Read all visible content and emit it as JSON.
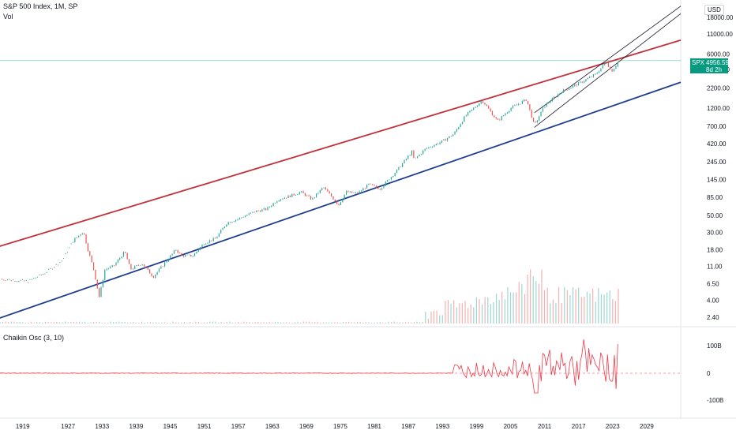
{
  "header": {
    "title": "S&P 500 Index, 1M, SP",
    "volume_label": "Vol",
    "currency": "USD"
  },
  "oscillator": {
    "title": "Chaikin Osc (3, 10)",
    "ticks": [
      "100B",
      "0",
      "-100B"
    ]
  },
  "price_badge": {
    "symbol": "SPX",
    "value": "4956.59",
    "countdown": "8d 2h",
    "color": "#089981"
  },
  "chart_data": {
    "type": "candlestick",
    "y_scale": "log",
    "ylim": [
      2.0,
      30000
    ],
    "xlim": [
      1915,
      2035
    ],
    "y_ticks": [
      "18000.00",
      "11000.00",
      "6000.00",
      "3800.00",
      "2200.00",
      "1200.00",
      "700.00",
      "420.00",
      "245.00",
      "145.00",
      "85.00",
      "50.00",
      "30.00",
      "18.00",
      "11.00",
      "6.50",
      "4.00",
      "2.40"
    ],
    "x_ticks": [
      "1919",
      "1927",
      "1933",
      "1939",
      "1945",
      "1951",
      "1957",
      "1963",
      "1969",
      "1975",
      "1981",
      "1987",
      "1993",
      "1999",
      "2005",
      "2011",
      "2017",
      "2023",
      "2029"
    ],
    "colors": {
      "up": "#26a69a",
      "down": "#ef5350",
      "upper_channel": "#c2303a",
      "lower_channel": "#1d3d8f",
      "osc": "#f23645"
    },
    "price_path": [
      [
        1915,
        7.5
      ],
      [
        1920,
        7.0
      ],
      [
        1923,
        9
      ],
      [
        1926,
        13
      ],
      [
        1928,
        24
      ],
      [
        1929.7,
        31
      ],
      [
        1930.5,
        18
      ],
      [
        1931.5,
        10
      ],
      [
        1932.5,
        4.4
      ],
      [
        1933.5,
        10
      ],
      [
        1935,
        11
      ],
      [
        1937,
        17
      ],
      [
        1938,
        10
      ],
      [
        1940,
        12
      ],
      [
        1942,
        8
      ],
      [
        1944,
        12
      ],
      [
        1946,
        18
      ],
      [
        1947,
        15
      ],
      [
        1949,
        15
      ],
      [
        1951,
        22
      ],
      [
        1953,
        25
      ],
      [
        1955,
        40
      ],
      [
        1957,
        45
      ],
      [
        1960,
        56
      ],
      [
        1962,
        60
      ],
      [
        1964,
        80
      ],
      [
        1966,
        88
      ],
      [
        1968,
        100
      ],
      [
        1970,
        80
      ],
      [
        1972,
        115
      ],
      [
        1974.7,
        68
      ],
      [
        1976,
        100
      ],
      [
        1978,
        95
      ],
      [
        1980,
        125
      ],
      [
        1982,
        110
      ],
      [
        1985,
        190
      ],
      [
        1987.6,
        330
      ],
      [
        1988,
        260
      ],
      [
        1990,
        360
      ],
      [
        1993,
        450
      ],
      [
        1995,
        560
      ],
      [
        1997,
        950
      ],
      [
        2000,
        1520
      ],
      [
        2002.7,
        820
      ],
      [
        2005,
        1200
      ],
      [
        2007.8,
        1560
      ],
      [
        2009.2,
        720
      ],
      [
        2011,
        1300
      ],
      [
        2014,
        1980
      ],
      [
        2017,
        2500
      ],
      [
        2020,
        3300
      ],
      [
        2021.9,
        4770
      ],
      [
        2022.8,
        3600
      ],
      [
        2023.8,
        4550
      ],
      [
        2024.1,
        4956
      ]
    ],
    "upper_channel": [
      [
        1913,
        18
      ],
      [
        2035,
        9100
      ]
    ],
    "lower_channel": [
      [
        1913,
        2.1
      ],
      [
        2035,
        2600
      ]
    ],
    "recent_channel_lines": [
      {
        "from": [
          2009.2,
          680
        ],
        "to": [
          2035,
          20000
        ]
      },
      {
        "from": [
          2009.2,
          1050
        ],
        "to": [
          2035,
          25000
        ]
      }
    ],
    "oscillator_range": [
      -100,
      100
    ]
  }
}
